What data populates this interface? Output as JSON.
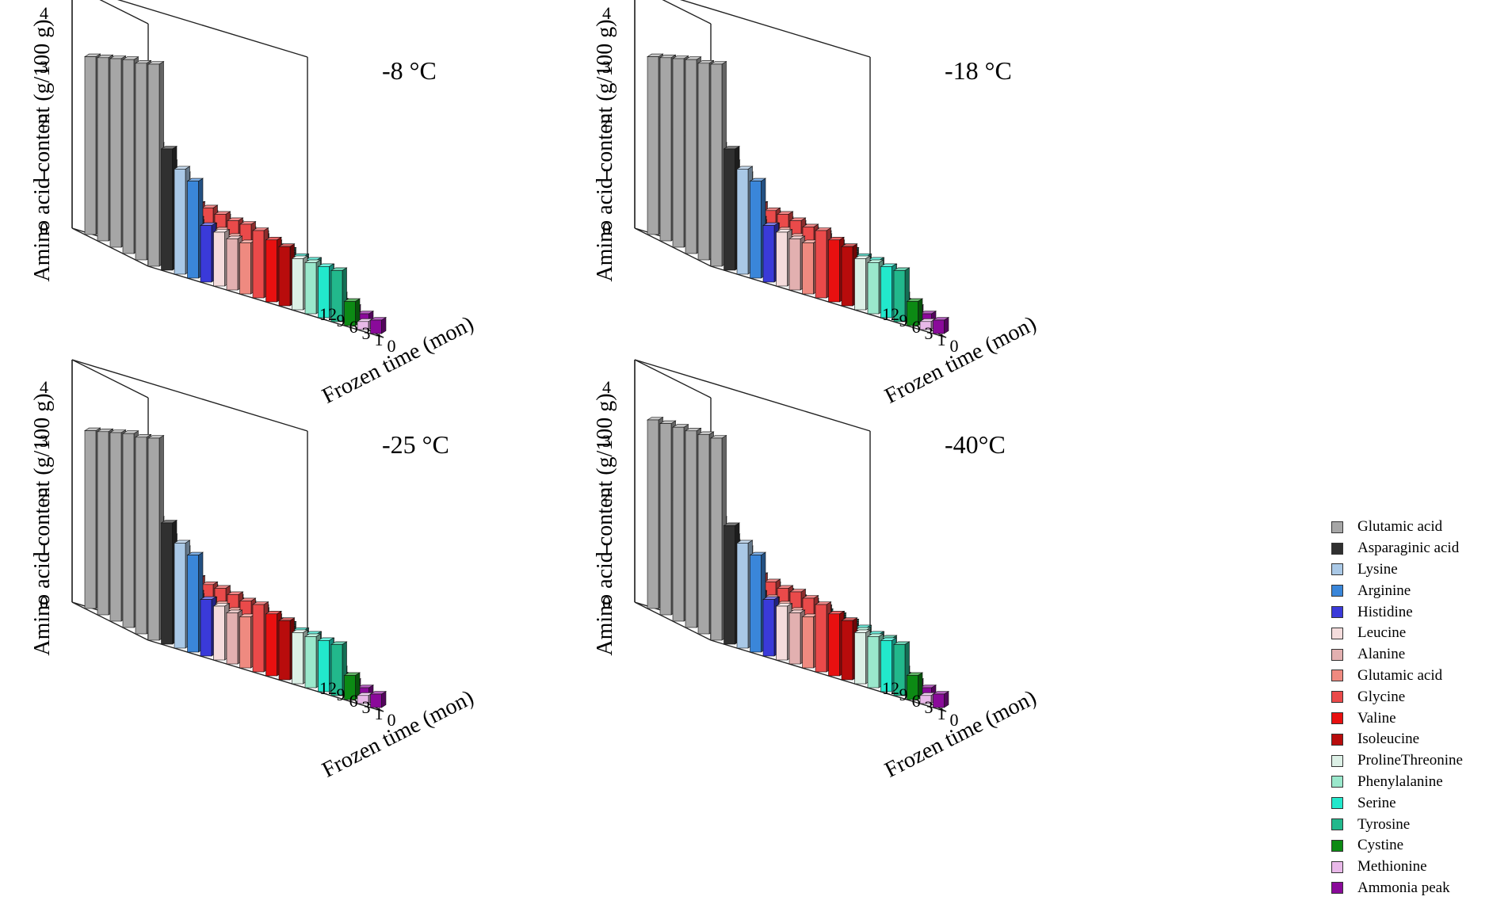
{
  "chart_data": {
    "type": "bar3d",
    "y_axis_label": "Amino acid content (g/100 g)",
    "depth_axis_label": "Frozen time (mon)",
    "y_ticks": [
      "0",
      "1",
      "2",
      "3",
      "4"
    ],
    "ylim": [
      0,
      4
    ],
    "frozen_time": [
      "0",
      "1",
      "3",
      "6",
      "9",
      "12"
    ],
    "amino_acids": [
      {
        "name": "Glutamic acid",
        "color": "#a6a6a6"
      },
      {
        "name": "Asparaginic acid",
        "color": "#303030"
      },
      {
        "name": "Lysine",
        "color": "#a9c8e6"
      },
      {
        "name": "Arginine",
        "color": "#3a86d9"
      },
      {
        "name": "Histidine",
        "color": "#3a3ad9"
      },
      {
        "name": "Leucine",
        "color": "#f4dcdc"
      },
      {
        "name": "Alanine",
        "color": "#e2b0b0"
      },
      {
        "name": "Glutamic acid",
        "color": "#ef8a80"
      },
      {
        "name": "Glycine",
        "color": "#ea4a4a"
      },
      {
        "name": "Valine",
        "color": "#e81010"
      },
      {
        "name": "Isoleucine",
        "color": "#b80c0c"
      },
      {
        "name": "ProlineThreonine",
        "color": "#dcf0e6"
      },
      {
        "name": "Phenylalanine",
        "color": "#9ae8cc"
      },
      {
        "name": "Serine",
        "color": "#22e8cc"
      },
      {
        "name": "Tyrosine",
        "color": "#22b88c"
      },
      {
        "name": "Cystine",
        "color": "#0c8a14"
      },
      {
        "name": "Methionine",
        "color": "#e8b8e8"
      },
      {
        "name": "Ammonia peak",
        "color": "#8a0a9a"
      }
    ],
    "panels": [
      {
        "title": "-8 °C",
        "series": [
          {
            "name": "Glutamic acid",
            "values": [
              3.75,
              3.65,
              3.6,
              3.5,
              3.4,
              3.3
            ]
          },
          {
            "name": "Asparaginic acid",
            "values": [
              2.25,
              2.2,
              2.2,
              2.2,
              2.15,
              2.1
            ]
          },
          {
            "name": "Lysine",
            "values": [
              1.95,
              1.95,
              1.9,
              1.9,
              1.85,
              1.85
            ]
          },
          {
            "name": "Arginine",
            "values": [
              1.8,
              1.8,
              1.75,
              1.75,
              1.7,
              1.7
            ]
          },
          {
            "name": "Histidine",
            "values": [
              1.05,
              1.05,
              1.0,
              1.0,
              1.0,
              1.0
            ]
          },
          {
            "name": "Leucine",
            "values": [
              1.0,
              1.0,
              1.0,
              1.0,
              0.95,
              0.95
            ]
          },
          {
            "name": "Alanine",
            "values": [
              0.95,
              0.95,
              0.95,
              0.9,
              0.9,
              0.9
            ]
          },
          {
            "name": "Glutamic acid",
            "values": [
              0.95,
              0.95,
              0.95,
              0.9,
              0.9,
              0.9
            ]
          },
          {
            "name": "Glycine",
            "values": [
              1.25,
              1.25,
              1.2,
              1.2,
              1.2,
              1.15
            ]
          },
          {
            "name": "Valine",
            "values": [
              1.15,
              1.15,
              1.1,
              1.1,
              1.1,
              1.05
            ]
          },
          {
            "name": "Isoleucine",
            "values": [
              1.1,
              1.05,
              1.05,
              1.0,
              1.0,
              0.95
            ]
          },
          {
            "name": "ProlineThreonine",
            "values": [
              0.95,
              0.9,
              0.9,
              0.9,
              0.85,
              0.85
            ]
          },
          {
            "name": "Phenylalanine",
            "values": [
              0.95,
              0.9,
              0.9,
              0.85,
              0.85,
              0.85
            ]
          },
          {
            "name": "Serine",
            "values": [
              0.95,
              0.95,
              0.9,
              0.9,
              0.85,
              0.8
            ]
          },
          {
            "name": "Tyrosine",
            "values": [
              0.95,
              0.9,
              0.9,
              0.85,
              0.85,
              0.8
            ]
          },
          {
            "name": "Cystine",
            "values": [
              0.45,
              0.45,
              0.45,
              0.4,
              0.4,
              0.4
            ]
          },
          {
            "name": "Methionine",
            "values": [
              0.15,
              0.15,
              0.15,
              0.15,
              0.15,
              0.15
            ]
          },
          {
            "name": "Ammonia peak",
            "values": [
              0.25,
              0.25,
              0.25,
              0.25,
              0.25,
              0.25
            ]
          }
        ]
      },
      {
        "title": "-18 °C",
        "series": [
          {
            "name": "Glutamic acid",
            "values": [
              3.75,
              3.65,
              3.6,
              3.5,
              3.4,
              3.3
            ]
          },
          {
            "name": "Asparaginic acid",
            "values": [
              2.25,
              2.2,
              2.2,
              2.15,
              2.15,
              2.1
            ]
          },
          {
            "name": "Lysine",
            "values": [
              1.95,
              1.95,
              1.9,
              1.9,
              1.85,
              1.85
            ]
          },
          {
            "name": "Arginine",
            "values": [
              1.8,
              1.8,
              1.75,
              1.75,
              1.7,
              1.7
            ]
          },
          {
            "name": "Histidine",
            "values": [
              1.05,
              1.05,
              1.0,
              1.0,
              1.0,
              1.0
            ]
          },
          {
            "name": "Leucine",
            "values": [
              1.0,
              1.0,
              1.0,
              1.0,
              0.95,
              0.95
            ]
          },
          {
            "name": "Alanine",
            "values": [
              0.95,
              0.95,
              0.95,
              0.9,
              0.9,
              0.9
            ]
          },
          {
            "name": "Glutamic acid",
            "values": [
              0.95,
              0.95,
              0.95,
              0.9,
              0.9,
              0.9
            ]
          },
          {
            "name": "Glycine",
            "values": [
              1.25,
              1.2,
              1.2,
              1.2,
              1.15,
              1.15
            ]
          },
          {
            "name": "Valine",
            "values": [
              1.15,
              1.15,
              1.1,
              1.1,
              1.05,
              1.05
            ]
          },
          {
            "name": "Isoleucine",
            "values": [
              1.1,
              1.05,
              1.05,
              1.0,
              1.0,
              0.95
            ]
          },
          {
            "name": "ProlineThreonine",
            "values": [
              0.95,
              0.9,
              0.9,
              0.9,
              0.85,
              0.85
            ]
          },
          {
            "name": "Phenylalanine",
            "values": [
              0.95,
              0.9,
              0.9,
              0.85,
              0.85,
              0.85
            ]
          },
          {
            "name": "Serine",
            "values": [
              0.95,
              0.95,
              0.9,
              0.9,
              0.85,
              0.8
            ]
          },
          {
            "name": "Tyrosine",
            "values": [
              0.95,
              0.9,
              0.9,
              0.85,
              0.85,
              0.8
            ]
          },
          {
            "name": "Cystine",
            "values": [
              0.45,
              0.45,
              0.45,
              0.4,
              0.4,
              0.4
            ]
          },
          {
            "name": "Methionine",
            "values": [
              0.15,
              0.15,
              0.15,
              0.15,
              0.15,
              0.15
            ]
          },
          {
            "name": "Ammonia peak",
            "values": [
              0.25,
              0.25,
              0.25,
              0.25,
              0.25,
              0.25
            ]
          }
        ]
      },
      {
        "title": "-25 °C",
        "series": [
          {
            "name": "Glutamic acid",
            "values": [
              3.75,
              3.65,
              3.6,
              3.5,
              3.4,
              3.3
            ]
          },
          {
            "name": "Asparaginic acid",
            "values": [
              2.25,
              2.2,
              2.2,
              2.15,
              2.15,
              2.1
            ]
          },
          {
            "name": "Lysine",
            "values": [
              1.95,
              1.95,
              1.9,
              1.9,
              1.85,
              1.85
            ]
          },
          {
            "name": "Arginine",
            "values": [
              1.8,
              1.8,
              1.75,
              1.75,
              1.7,
              1.7
            ]
          },
          {
            "name": "Histidine",
            "values": [
              1.05,
              1.05,
              1.0,
              1.0,
              1.0,
              1.0
            ]
          },
          {
            "name": "Leucine",
            "values": [
              1.0,
              1.0,
              1.0,
              1.0,
              0.95,
              0.95
            ]
          },
          {
            "name": "Alanine",
            "values": [
              0.95,
              0.95,
              0.95,
              0.9,
              0.9,
              0.9
            ]
          },
          {
            "name": "Glutamic acid",
            "values": [
              0.95,
              0.95,
              0.95,
              0.9,
              0.9,
              0.9
            ]
          },
          {
            "name": "Glycine",
            "values": [
              1.25,
              1.2,
              1.2,
              1.2,
              1.15,
              1.15
            ]
          },
          {
            "name": "Valine",
            "values": [
              1.15,
              1.15,
              1.1,
              1.1,
              1.05,
              1.05
            ]
          },
          {
            "name": "Isoleucine",
            "values": [
              1.1,
              1.05,
              1.05,
              1.0,
              1.0,
              0.95
            ]
          },
          {
            "name": "ProlineThreonine",
            "values": [
              0.95,
              0.9,
              0.9,
              0.9,
              0.85,
              0.85
            ]
          },
          {
            "name": "Phenylalanine",
            "values": [
              0.95,
              0.9,
              0.9,
              0.85,
              0.85,
              0.85
            ]
          },
          {
            "name": "Serine",
            "values": [
              0.95,
              0.95,
              0.9,
              0.9,
              0.85,
              0.8
            ]
          },
          {
            "name": "Tyrosine",
            "values": [
              0.95,
              0.9,
              0.9,
              0.85,
              0.85,
              0.8
            ]
          },
          {
            "name": "Cystine",
            "values": [
              0.45,
              0.45,
              0.45,
              0.4,
              0.4,
              0.4
            ]
          },
          {
            "name": "Methionine",
            "values": [
              0.15,
              0.15,
              0.15,
              0.15,
              0.15,
              0.15
            ]
          },
          {
            "name": "Ammonia peak",
            "values": [
              0.25,
              0.25,
              0.25,
              0.25,
              0.25,
              0.25
            ]
          }
        ]
      },
      {
        "title": "-40°C",
        "series": [
          {
            "name": "Glutamic acid",
            "values": [
              3.75,
              3.7,
              3.65,
              3.6,
              3.55,
              3.5
            ]
          },
          {
            "name": "Asparaginic acid",
            "values": [
              2.2,
              2.2,
              2.2,
              2.2,
              2.2,
              2.2
            ]
          },
          {
            "name": "Lysine",
            "values": [
              1.95,
              1.95,
              1.95,
              1.95,
              1.9,
              1.9
            ]
          },
          {
            "name": "Arginine",
            "values": [
              1.8,
              1.8,
              1.8,
              1.8,
              1.8,
              1.8
            ]
          },
          {
            "name": "Histidine",
            "values": [
              1.05,
              1.05,
              1.05,
              1.05,
              1.05,
              1.05
            ]
          },
          {
            "name": "Leucine",
            "values": [
              1.0,
              1.0,
              1.0,
              1.0,
              1.0,
              1.0
            ]
          },
          {
            "name": "Alanine",
            "values": [
              0.95,
              0.95,
              0.95,
              0.95,
              0.95,
              0.95
            ]
          },
          {
            "name": "Glutamic acid",
            "values": [
              0.95,
              0.95,
              0.95,
              0.95,
              0.95,
              0.95
            ]
          },
          {
            "name": "Glycine",
            "values": [
              1.25,
              1.25,
              1.25,
              1.2,
              1.2,
              1.2
            ]
          },
          {
            "name": "Valine",
            "values": [
              1.15,
              1.15,
              1.15,
              1.1,
              1.1,
              1.1
            ]
          },
          {
            "name": "Isoleucine",
            "values": [
              1.1,
              1.1,
              1.1,
              1.05,
              1.05,
              1.05
            ]
          },
          {
            "name": "ProlineThreonine",
            "values": [
              0.95,
              0.95,
              0.95,
              0.9,
              0.9,
              0.9
            ]
          },
          {
            "name": "Phenylalanine",
            "values": [
              0.95,
              0.95,
              0.9,
              0.9,
              0.9,
              0.9
            ]
          },
          {
            "name": "Serine",
            "values": [
              0.95,
              0.95,
              0.95,
              0.9,
              0.9,
              0.9
            ]
          },
          {
            "name": "Tyrosine",
            "values": [
              0.95,
              0.95,
              0.9,
              0.9,
              0.9,
              0.9
            ]
          },
          {
            "name": "Cystine",
            "values": [
              0.45,
              0.45,
              0.45,
              0.45,
              0.45,
              0.45
            ]
          },
          {
            "name": "Methionine",
            "values": [
              0.15,
              0.15,
              0.15,
              0.15,
              0.15,
              0.15
            ]
          },
          {
            "name": "Ammonia peak",
            "values": [
              0.25,
              0.25,
              0.25,
              0.25,
              0.25,
              0.25
            ]
          }
        ]
      }
    ]
  }
}
